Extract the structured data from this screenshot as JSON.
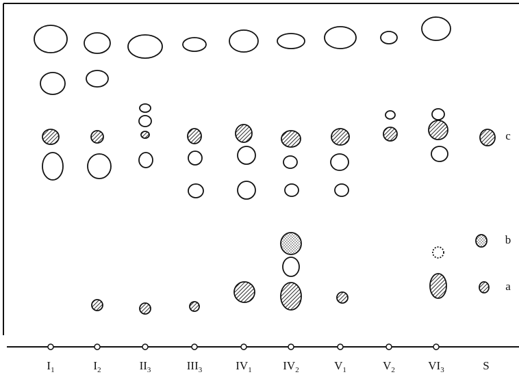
{
  "lanes": [
    {
      "label": "I",
      "sub": "1"
    },
    {
      "label": "I",
      "sub": "2"
    },
    {
      "label": "II",
      "sub": "3"
    },
    {
      "label": "III",
      "sub": "3"
    },
    {
      "label": "IV",
      "sub": "1"
    },
    {
      "label": "IV",
      "sub": "2"
    },
    {
      "label": "V",
      "sub": "1"
    },
    {
      "label": "V",
      "sub": "2"
    },
    {
      "label": "VI",
      "sub": "3"
    },
    {
      "label": "S"
    }
  ],
  "spot_labels": [
    "c",
    "b",
    "a"
  ]
}
